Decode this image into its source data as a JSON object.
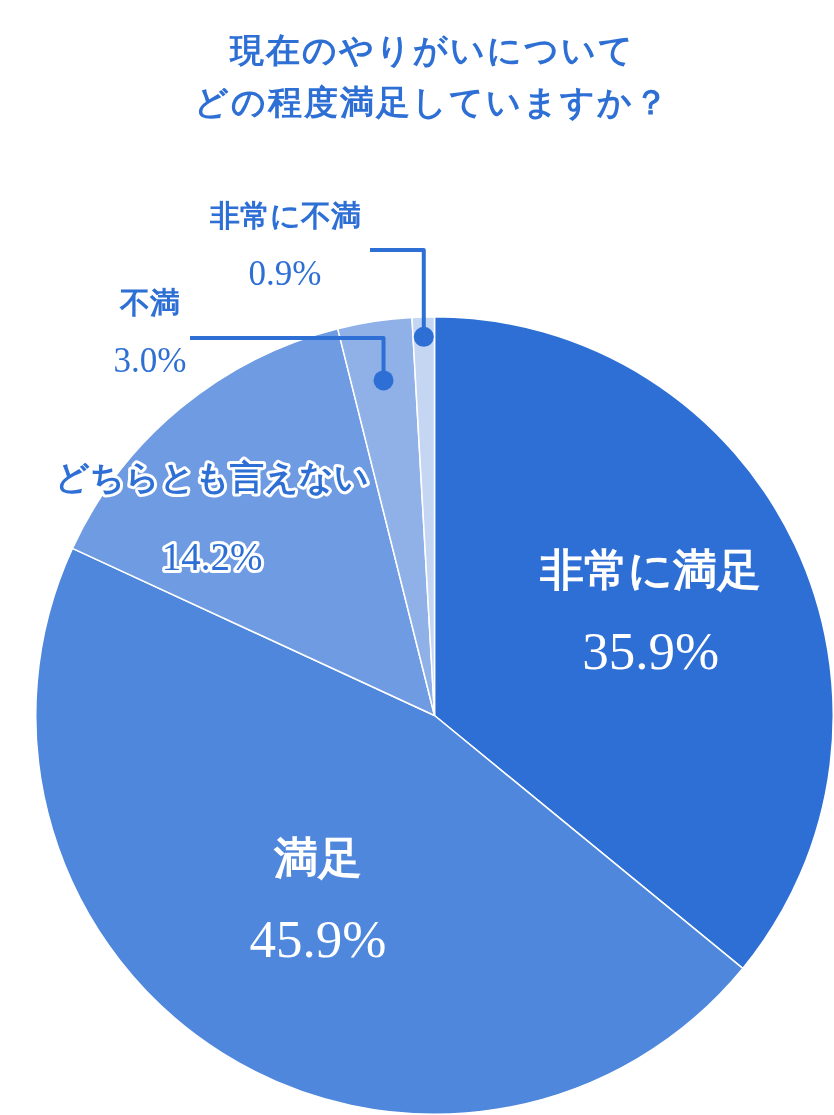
{
  "chart_data": {
    "type": "pie",
    "title": "現在のやりがいについて",
    "subtitle": "どの程度満足していますか？",
    "categories": [
      "非常に満足",
      "満足",
      "どちらとも言えない",
      "不満",
      "非常に不満"
    ],
    "values": [
      35.9,
      45.9,
      14.2,
      3.0,
      0.9
    ],
    "colors": [
      "#2e6fd5",
      "#4f87dc",
      "#6f9be2",
      "#8fb1e8",
      "#c5d6f3"
    ],
    "value_labels": [
      "35.9%",
      "45.9%",
      "14.2%",
      "3.0%",
      "0.9%"
    ],
    "legend": false
  }
}
